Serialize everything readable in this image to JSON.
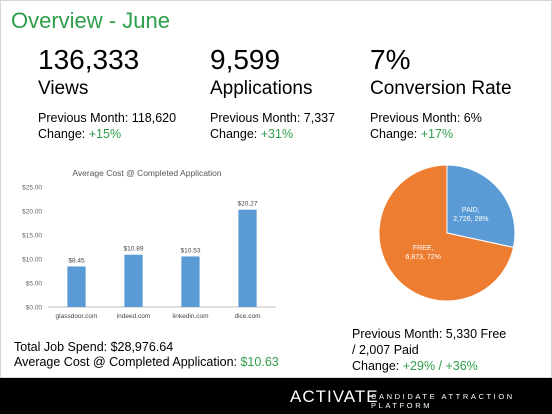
{
  "title": "Overview - June",
  "kpis": [
    {
      "value": "136,333",
      "label": "Views",
      "previous": "Previous Month: 118,620",
      "change_prefix": "Change: ",
      "change": "+15%"
    },
    {
      "value": "9,599",
      "label": "Applications",
      "previous": "Previous Month: 7,337",
      "change_prefix": "Change: ",
      "change": "+31%"
    },
    {
      "value": "7%",
      "label": "Conversion Rate",
      "previous": "Previous Month: 6%",
      "change_prefix": "Change: ",
      "change": "+17%"
    }
  ],
  "chart_data": [
    {
      "type": "bar",
      "title": "Average Cost @ Completed Application",
      "categories": [
        "glassdoor.com",
        "indeed.com",
        "linkedin.com",
        "dice.com"
      ],
      "values": [
        8.45,
        10.89,
        10.53,
        20.27
      ],
      "data_labels": [
        "$8.45",
        "$10.89",
        "$10.53",
        "$20.27"
      ],
      "yticks": [
        0,
        5,
        10,
        15,
        20,
        25
      ],
      "ytick_labels": [
        "$0.00",
        "$5.00",
        "$10.00",
        "$15.00",
        "$20.00",
        "$25.00"
      ],
      "ylim": [
        0,
        25
      ],
      "grid": false,
      "color": "#5b9bd5"
    },
    {
      "type": "pie",
      "slices": [
        {
          "label": "PAID,",
          "value": 2726,
          "value_text": "2,726, 28%",
          "percent": 28,
          "color": "#5b9bd5"
        },
        {
          "label": "FREE,",
          "value": 6873,
          "value_text": "6,873, 72%",
          "percent": 72,
          "color": "#ed7d31"
        }
      ]
    }
  ],
  "totals": {
    "spend_label": "Total Job Spend: $28,976.64",
    "avg_label": "Average Cost @ Completed Application: ",
    "avg_value": "$10.63"
  },
  "pie_prev": {
    "line1": "Previous Month: 5,330 Free",
    "line2": "/ 2,007 Paid",
    "change_prefix": "Change: ",
    "change": "+29% / +36%"
  },
  "footer": {
    "logo": "ACTIVATE",
    "tagline": "CANDIDATE ATTRACTION PLATFORM"
  },
  "colors": {
    "accent_green": "#2e9e4a",
    "footer_bg": "#000000"
  }
}
